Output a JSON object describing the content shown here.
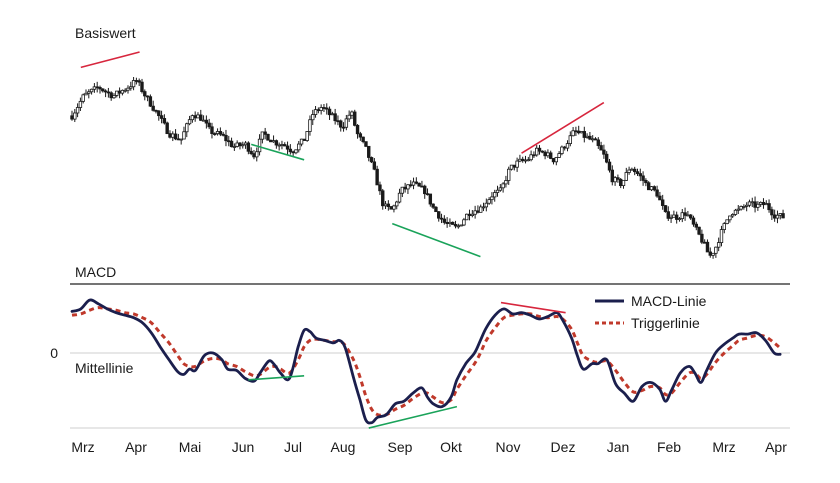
{
  "chart_data": [
    {
      "type": "candlestick",
      "title": "Basiswert",
      "x_range": [
        0,
        12.15
      ],
      "y_range": [
        0,
        100
      ],
      "ohlc_note": "",
      "candles": [],
      "trendlines": [
        {
          "color": "#d7263d",
          "points": [
            [
              0.15,
              93.0
            ],
            [
              1.15,
              100.0
            ]
          ]
        },
        {
          "color": "#1aa35a",
          "points": [
            [
              3.05,
              58.0
            ],
            [
              3.95,
              51.0
            ]
          ]
        },
        {
          "color": "#1aa35a",
          "points": [
            [
              5.45,
              22.0
            ],
            [
              6.95,
              7.0
            ]
          ]
        },
        {
          "color": "#d7263d",
          "points": [
            [
              7.65,
              54.0
            ],
            [
              9.05,
              77.0
            ]
          ]
        }
      ]
    },
    {
      "type": "line",
      "title": "MACD",
      "zero_label": "0",
      "zero_line_label": "Mittellinie",
      "x_range": [
        0,
        12.15
      ],
      "y_range": [
        -0.5,
        0.5
      ],
      "x_ticks": [
        "Mrz",
        "Apr",
        "Mai",
        "Jun",
        "Jul",
        "Aug",
        "Sep",
        "Okt",
        "Nov",
        "Dez",
        "Jan",
        "Feb",
        "Mrz",
        "Apr"
      ],
      "legend_position": "top-right",
      "series": [
        {
          "name": "MACD-Linie",
          "color": "#1b1f4d",
          "style": "solid",
          "points": [
            [
              0.0,
              0.33
            ],
            [
              0.15,
              0.35
            ],
            [
              0.3,
              0.42
            ],
            [
              0.45,
              0.39
            ],
            [
              0.6,
              0.35
            ],
            [
              0.75,
              0.32
            ],
            [
              0.9,
              0.3
            ],
            [
              1.05,
              0.28
            ],
            [
              1.2,
              0.24
            ],
            [
              1.35,
              0.16
            ],
            [
              1.5,
              0.05
            ],
            [
              1.65,
              -0.05
            ],
            [
              1.8,
              -0.14
            ],
            [
              1.9,
              -0.16
            ],
            [
              2.0,
              -0.12
            ],
            [
              2.1,
              -0.13
            ],
            [
              2.25,
              -0.02
            ],
            [
              2.4,
              0.0
            ],
            [
              2.55,
              -0.05
            ],
            [
              2.65,
              -0.12
            ],
            [
              2.8,
              -0.13
            ],
            [
              2.95,
              -0.19
            ],
            [
              3.1,
              -0.21
            ],
            [
              3.2,
              -0.15
            ],
            [
              3.35,
              -0.06
            ],
            [
              3.45,
              -0.09
            ],
            [
              3.55,
              -0.15
            ],
            [
              3.7,
              -0.19
            ],
            [
              3.85,
              0.05
            ],
            [
              3.95,
              0.18
            ],
            [
              4.05,
              0.17
            ],
            [
              4.15,
              0.12
            ],
            [
              4.3,
              0.1
            ],
            [
              4.45,
              0.08
            ],
            [
              4.55,
              0.1
            ],
            [
              4.65,
              0.04
            ],
            [
              4.8,
              -0.2
            ],
            [
              4.9,
              -0.35
            ],
            [
              5.0,
              -0.5
            ],
            [
              5.1,
              -0.52
            ],
            [
              5.2,
              -0.48
            ],
            [
              5.35,
              -0.46
            ],
            [
              5.5,
              -0.38
            ],
            [
              5.65,
              -0.36
            ],
            [
              5.8,
              -0.3
            ],
            [
              5.95,
              -0.26
            ],
            [
              6.05,
              -0.33
            ],
            [
              6.15,
              -0.38
            ],
            [
              6.3,
              -0.4
            ],
            [
              6.45,
              -0.33
            ],
            [
              6.55,
              -0.2
            ],
            [
              6.7,
              -0.08
            ],
            [
              6.85,
              0.0
            ],
            [
              6.95,
              0.1
            ],
            [
              7.05,
              0.2
            ],
            [
              7.2,
              0.3
            ],
            [
              7.35,
              0.35
            ],
            [
              7.5,
              0.31
            ],
            [
              7.65,
              0.32
            ],
            [
              7.8,
              0.3
            ],
            [
              7.95,
              0.27
            ],
            [
              8.1,
              0.29
            ],
            [
              8.25,
              0.32
            ],
            [
              8.35,
              0.26
            ],
            [
              8.5,
              0.12
            ],
            [
              8.6,
              -0.02
            ],
            [
              8.7,
              -0.12
            ],
            [
              8.85,
              -0.08
            ],
            [
              8.95,
              -0.08
            ],
            [
              9.1,
              -0.05
            ],
            [
              9.25,
              -0.23
            ],
            [
              9.4,
              -0.3
            ],
            [
              9.55,
              -0.36
            ],
            [
              9.7,
              -0.25
            ],
            [
              9.85,
              -0.22
            ],
            [
              10.0,
              -0.27
            ],
            [
              10.1,
              -0.36
            ],
            [
              10.2,
              -0.28
            ],
            [
              10.35,
              -0.15
            ],
            [
              10.5,
              -0.1
            ],
            [
              10.6,
              -0.15
            ],
            [
              10.7,
              -0.22
            ],
            [
              10.8,
              -0.13
            ],
            [
              10.95,
              0.0
            ],
            [
              11.1,
              0.07
            ],
            [
              11.25,
              0.12
            ],
            [
              11.35,
              0.15
            ],
            [
              11.5,
              0.15
            ],
            [
              11.65,
              0.16
            ],
            [
              11.8,
              0.1
            ],
            [
              11.95,
              0.0
            ],
            [
              12.05,
              -0.01
            ]
          ]
        },
        {
          "name": "Triggerlinie",
          "color": "#c0392b",
          "style": "dashed",
          "points": [
            [
              0.0,
              0.3
            ],
            [
              0.15,
              0.31
            ],
            [
              0.3,
              0.34
            ],
            [
              0.45,
              0.36
            ],
            [
              0.6,
              0.35
            ],
            [
              0.75,
              0.34
            ],
            [
              0.9,
              0.32
            ],
            [
              1.05,
              0.31
            ],
            [
              1.2,
              0.28
            ],
            [
              1.35,
              0.24
            ],
            [
              1.5,
              0.16
            ],
            [
              1.65,
              0.08
            ],
            [
              1.8,
              -0.02
            ],
            [
              1.9,
              -0.08
            ],
            [
              2.0,
              -0.1
            ],
            [
              2.1,
              -0.1
            ],
            [
              2.25,
              -0.06
            ],
            [
              2.4,
              -0.04
            ],
            [
              2.55,
              -0.05
            ],
            [
              2.65,
              -0.08
            ],
            [
              2.8,
              -0.1
            ],
            [
              2.95,
              -0.14
            ],
            [
              3.1,
              -0.17
            ],
            [
              3.2,
              -0.16
            ],
            [
              3.35,
              -0.11
            ],
            [
              3.45,
              -0.1
            ],
            [
              3.55,
              -0.12
            ],
            [
              3.7,
              -0.15
            ],
            [
              3.85,
              -0.05
            ],
            [
              3.95,
              0.05
            ],
            [
              4.05,
              0.1
            ],
            [
              4.15,
              0.11
            ],
            [
              4.3,
              0.1
            ],
            [
              4.45,
              0.09
            ],
            [
              4.55,
              0.09
            ],
            [
              4.65,
              0.06
            ],
            [
              4.8,
              -0.06
            ],
            [
              4.9,
              -0.18
            ],
            [
              5.0,
              -0.32
            ],
            [
              5.1,
              -0.42
            ],
            [
              5.2,
              -0.46
            ],
            [
              5.35,
              -0.46
            ],
            [
              5.5,
              -0.42
            ],
            [
              5.65,
              -0.39
            ],
            [
              5.8,
              -0.34
            ],
            [
              5.95,
              -0.3
            ],
            [
              6.05,
              -0.3
            ],
            [
              6.15,
              -0.33
            ],
            [
              6.3,
              -0.37
            ],
            [
              6.45,
              -0.35
            ],
            [
              6.55,
              -0.27
            ],
            [
              6.7,
              -0.17
            ],
            [
              6.85,
              -0.08
            ],
            [
              6.95,
              0.0
            ],
            [
              7.05,
              0.1
            ],
            [
              7.2,
              0.2
            ],
            [
              7.35,
              0.28
            ],
            [
              7.5,
              0.3
            ],
            [
              7.65,
              0.31
            ],
            [
              7.8,
              0.31
            ],
            [
              7.95,
              0.29
            ],
            [
              8.1,
              0.28
            ],
            [
              8.25,
              0.29
            ],
            [
              8.35,
              0.27
            ],
            [
              8.5,
              0.19
            ],
            [
              8.6,
              0.08
            ],
            [
              8.7,
              -0.02
            ],
            [
              8.85,
              -0.06
            ],
            [
              8.95,
              -0.07
            ],
            [
              9.1,
              -0.06
            ],
            [
              9.25,
              -0.13
            ],
            [
              9.4,
              -0.22
            ],
            [
              9.55,
              -0.29
            ],
            [
              9.7,
              -0.28
            ],
            [
              9.85,
              -0.25
            ],
            [
              10.0,
              -0.26
            ],
            [
              10.1,
              -0.31
            ],
            [
              10.2,
              -0.3
            ],
            [
              10.35,
              -0.22
            ],
            [
              10.5,
              -0.15
            ],
            [
              10.6,
              -0.15
            ],
            [
              10.7,
              -0.19
            ],
            [
              10.8,
              -0.16
            ],
            [
              10.95,
              -0.07
            ],
            [
              11.1,
              0.0
            ],
            [
              11.25,
              0.06
            ],
            [
              11.35,
              0.1
            ],
            [
              11.5,
              0.12
            ],
            [
              11.65,
              0.14
            ],
            [
              11.8,
              0.13
            ],
            [
              11.95,
              0.08
            ],
            [
              12.05,
              0.04
            ]
          ]
        }
      ],
      "trendlines": [
        {
          "color": "#d7263d",
          "points": [
            [
              7.3,
              0.4
            ],
            [
              8.4,
              0.32
            ]
          ]
        },
        {
          "color": "#1aa35a",
          "points": [
            [
              3.0,
              -0.2
            ],
            [
              3.95,
              -0.17
            ]
          ]
        },
        {
          "color": "#1aa35a",
          "points": [
            [
              5.05,
              -0.56
            ],
            [
              6.55,
              -0.4
            ]
          ]
        }
      ]
    }
  ]
}
